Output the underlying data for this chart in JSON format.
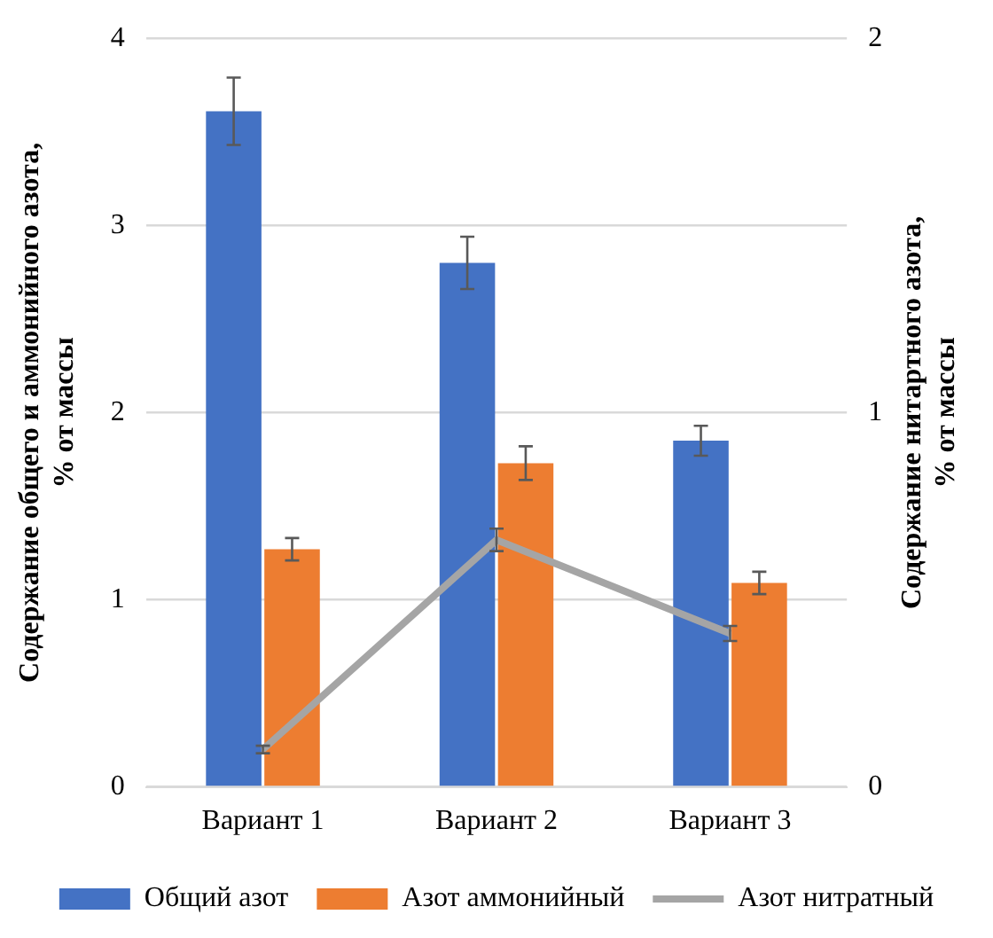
{
  "chart_data": {
    "type": "bar",
    "categories": [
      "Вариант 1",
      "Вариант 2",
      "Вариант 3"
    ],
    "ylabel": "Содержание общего и аммонийного азота, % от массы",
    "y2label": "Содержание нитартного азота, % от массы",
    "series": [
      {
        "name": "Общий азот",
        "color": "#4472c4",
        "values": [
          3.61,
          2.8,
          1.85
        ],
        "errors": [
          0.18,
          0.14,
          0.08
        ]
      },
      {
        "name": "Азот аммонийный",
        "color": "#ed7d31",
        "values": [
          1.27,
          1.73,
          1.09
        ],
        "errors": [
          0.06,
          0.09,
          0.06
        ]
      },
      {
        "name": "Азот нитратный",
        "type": "line",
        "axis": "y2",
        "color": "#a5a5a5",
        "values": [
          0.1,
          0.66,
          0.41
        ],
        "errors": [
          0.01,
          0.03,
          0.02
        ]
      }
    ],
    "ylim": [
      0,
      4
    ],
    "yticks": [
      0,
      1,
      2,
      3,
      4
    ],
    "y2lim": [
      0,
      2
    ],
    "y2ticks": [
      0,
      1,
      2
    ],
    "grid": "y",
    "legend": "bottom"
  }
}
